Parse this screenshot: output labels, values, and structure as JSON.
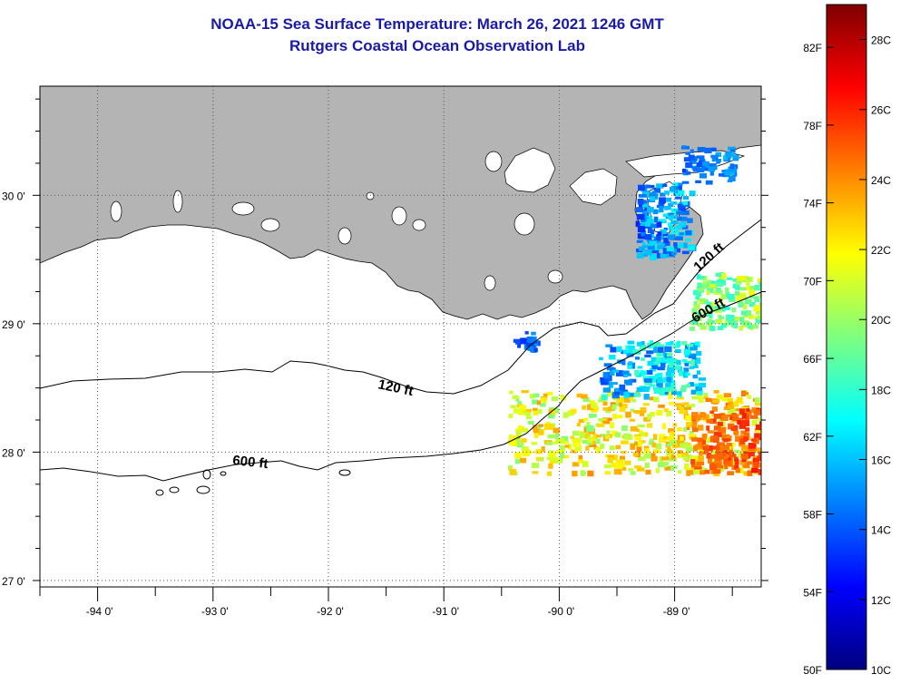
{
  "header": {
    "title": "NOAA-15 Sea Surface Temperature:  March 26, 2021 1246 GMT",
    "subtitle": "Rutgers Coastal Ocean Observation Lab"
  },
  "map": {
    "lon_range": [
      -94.5,
      -88.25
    ],
    "lat_range": [
      26.95,
      30.85
    ],
    "lon_ticks": [
      {
        "value": -94,
        "label": "-94 0'"
      },
      {
        "value": -93,
        "label": "-93 0'"
      },
      {
        "value": -92,
        "label": "-92 0'"
      },
      {
        "value": -91,
        "label": "-91 0'"
      },
      {
        "value": -90,
        "label": "-90 0'"
      },
      {
        "value": -89,
        "label": "-89 0'"
      }
    ],
    "lat_ticks": [
      {
        "value": 27,
        "label": "27 0'"
      },
      {
        "value": 28,
        "label": "28 0'"
      },
      {
        "value": 29,
        "label": "29 0'"
      },
      {
        "value": 30,
        "label": "30 0'"
      }
    ],
    "contours": [
      {
        "name": "isobath-120ft",
        "label": "120 ft"
      },
      {
        "name": "isobath-600ft",
        "label": "600 ft"
      }
    ],
    "colors": {
      "land": "#b4b4b4",
      "water": "#ffffff",
      "grid": "#555555"
    }
  },
  "colorbar": {
    "fahrenheit_labels": [
      "82F",
      "78F",
      "74F",
      "70F",
      "66F",
      "62F",
      "58F",
      "54F",
      "50F"
    ],
    "celsius_labels": [
      "28C",
      "26C",
      "24C",
      "22C",
      "20C",
      "18C",
      "16C",
      "14C",
      "12C",
      "10C"
    ],
    "stops": [
      "#00007f",
      "#0000ff",
      "#007fff",
      "#00ffff",
      "#7fff7f",
      "#ffff00",
      "#ff7f00",
      "#ff0000",
      "#7f0000"
    ]
  }
}
